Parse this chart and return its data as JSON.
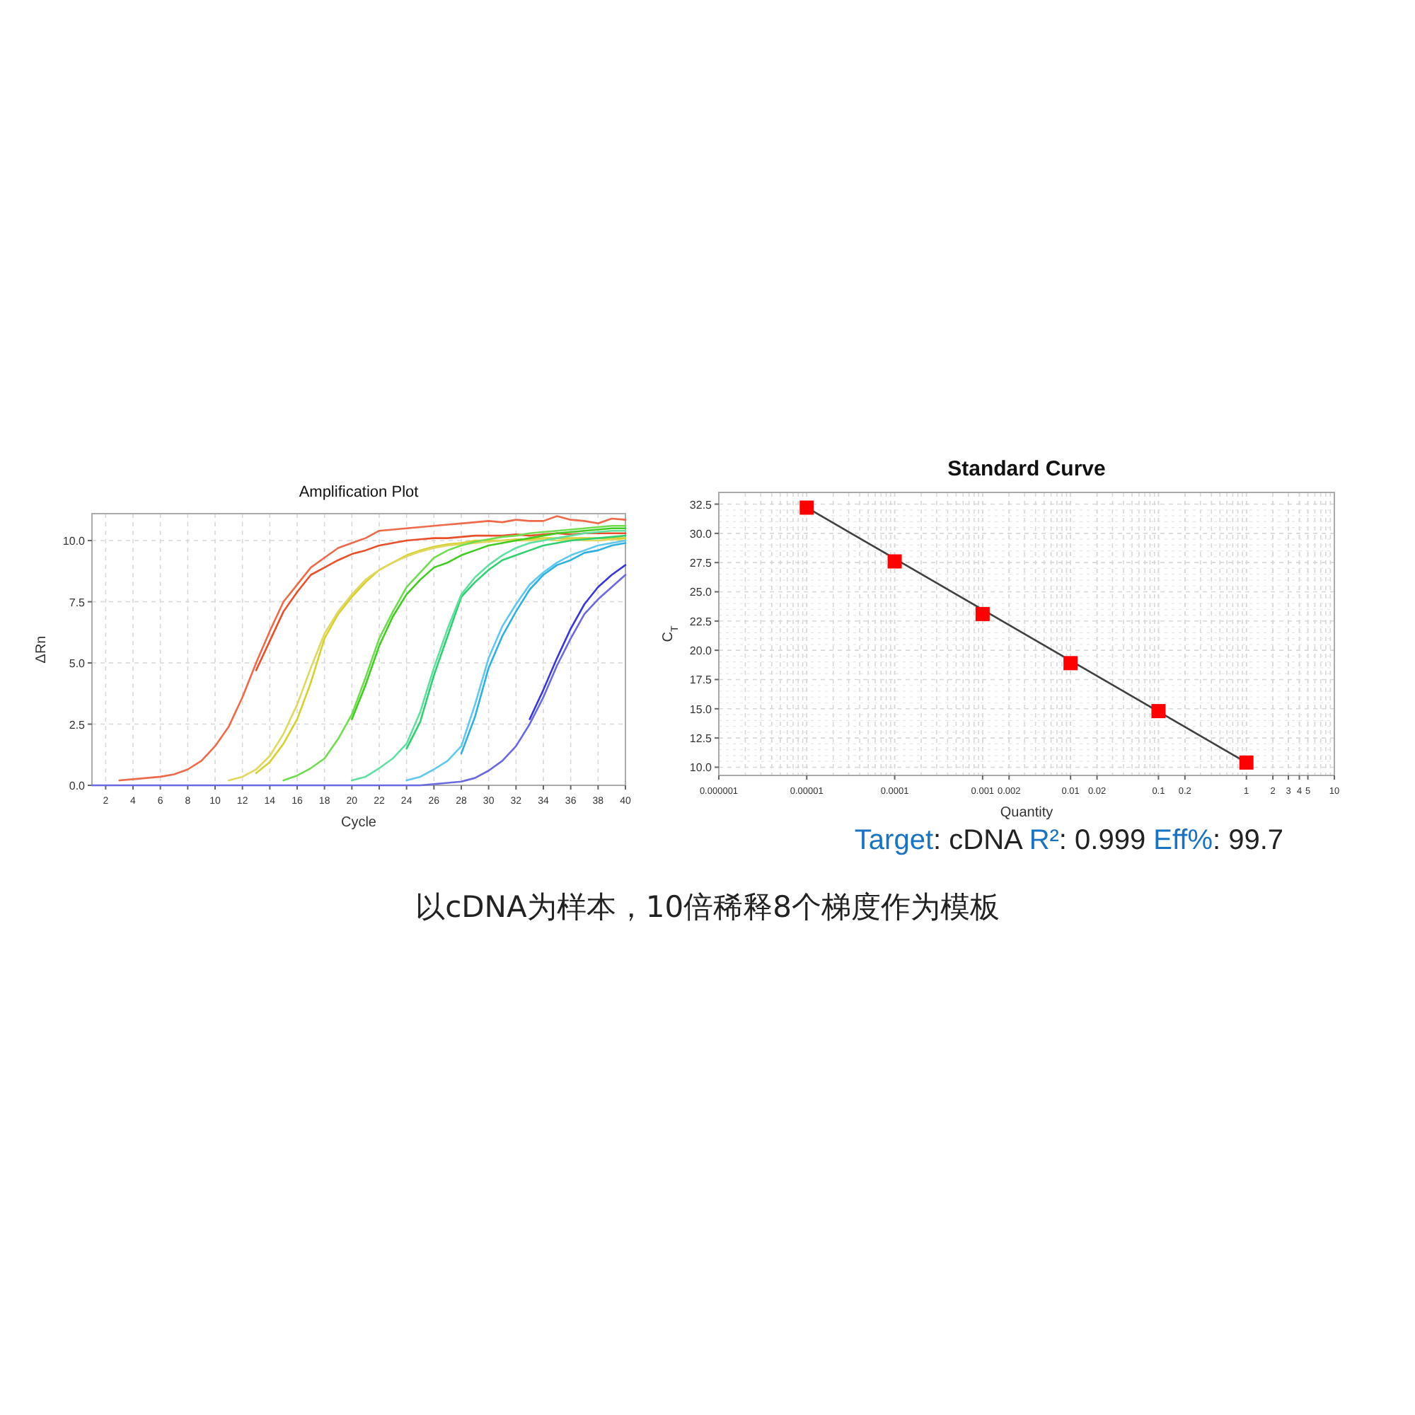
{
  "chart_data": [
    {
      "type": "line",
      "title": "Amplification Plot",
      "xlabel": "Cycle",
      "ylabel": "ΔRn",
      "grid": true,
      "marker": "none",
      "x": [
        1,
        2,
        3,
        4,
        5,
        6,
        7,
        8,
        9,
        10,
        11,
        12,
        13,
        14,
        15,
        16,
        17,
        18,
        19,
        20,
        21,
        22,
        23,
        24,
        25,
        26,
        27,
        28,
        29,
        30,
        31,
        32,
        33,
        34,
        35,
        36,
        37,
        38,
        39,
        40
      ],
      "xlim": [
        1,
        40
      ],
      "xticks": [
        2,
        4,
        6,
        8,
        10,
        12,
        14,
        16,
        18,
        20,
        22,
        24,
        26,
        28,
        30,
        32,
        34,
        36,
        38,
        40
      ],
      "ylim": [
        0,
        11.1
      ],
      "yticks": [
        {
          "value": 0,
          "label": "0.0"
        },
        {
          "value": 2.5,
          "label": "2.5"
        },
        {
          "value": 5,
          "label": "5.0"
        },
        {
          "value": 7.5,
          "label": "7.5"
        },
        {
          "value": 10,
          "label": "10.0"
        }
      ],
      "series": [
        {
          "color": "#e8502a",
          "values": [
            null,
            null,
            null,
            null,
            null,
            null,
            null,
            null,
            null,
            null,
            null,
            null,
            4.7,
            5.9,
            7.1,
            7.9,
            8.6,
            8.9,
            9.2,
            9.45,
            9.6,
            9.8,
            9.9,
            10.0,
            10.05,
            10.1,
            10.1,
            10.15,
            10.2,
            10.2,
            10.2,
            10.25,
            10.2,
            10.25,
            10.3,
            10.25,
            10.3,
            10.3,
            10.3,
            10.3
          ]
        },
        {
          "color": "#ee6a4a",
          "values": [
            null,
            null,
            0.2,
            0.25,
            0.3,
            0.35,
            0.45,
            0.65,
            1.0,
            1.6,
            2.4,
            3.6,
            5.0,
            6.3,
            7.5,
            8.2,
            8.9,
            9.3,
            9.7,
            9.9,
            10.1,
            10.4,
            10.45,
            10.5,
            10.55,
            10.6,
            10.65,
            10.7,
            10.75,
            10.8,
            10.75,
            10.85,
            10.8,
            10.8,
            11.0,
            10.85,
            10.8,
            10.7,
            10.9,
            10.85
          ]
        },
        {
          "color": "#d6d030",
          "values": [
            null,
            null,
            null,
            null,
            null,
            null,
            null,
            null,
            null,
            null,
            null,
            null,
            0.5,
            0.95,
            1.7,
            2.7,
            4.2,
            6.0,
            7.0,
            7.7,
            8.3,
            8.8,
            9.1,
            9.4,
            9.6,
            9.75,
            9.85,
            9.9,
            10.0,
            10.0,
            10.0,
            10.05,
            10.05,
            10.1,
            10.1,
            10.1,
            10.1,
            10.1,
            10.1,
            10.1
          ]
        },
        {
          "color": "#e0d860",
          "values": [
            null,
            null,
            null,
            null,
            null,
            null,
            null,
            null,
            null,
            null,
            0.2,
            0.35,
            0.65,
            1.2,
            2.1,
            3.3,
            4.8,
            6.2,
            7.1,
            7.8,
            8.4,
            8.8,
            9.1,
            9.35,
            9.55,
            9.7,
            9.8,
            9.85,
            9.9,
            9.95,
            10.0,
            10.0,
            10.0,
            10.05,
            10.0,
            10.05,
            10.0,
            10.0,
            10.05,
            10.0
          ]
        },
        {
          "color": "#40cc20",
          "values": [
            null,
            null,
            null,
            null,
            null,
            null,
            null,
            null,
            null,
            null,
            null,
            null,
            null,
            null,
            null,
            null,
            null,
            null,
            null,
            2.7,
            4.1,
            5.7,
            6.9,
            7.8,
            8.4,
            8.9,
            9.1,
            9.4,
            9.6,
            9.8,
            9.9,
            10.0,
            10.1,
            10.2,
            10.3,
            10.35,
            10.4,
            10.45,
            10.5,
            10.5
          ]
        },
        {
          "color": "#70dc50",
          "values": [
            null,
            null,
            null,
            null,
            null,
            null,
            null,
            null,
            null,
            null,
            null,
            null,
            null,
            null,
            0.2,
            0.4,
            0.7,
            1.1,
            1.9,
            2.9,
            4.4,
            6.0,
            7.1,
            8.1,
            8.7,
            9.3,
            9.6,
            9.8,
            9.95,
            10.05,
            10.15,
            10.2,
            10.3,
            10.35,
            10.4,
            10.45,
            10.5,
            10.55,
            10.6,
            10.6
          ]
        },
        {
          "color": "#30d070",
          "values": [
            null,
            null,
            null,
            null,
            null,
            null,
            null,
            null,
            null,
            null,
            null,
            null,
            null,
            null,
            null,
            null,
            null,
            null,
            null,
            null,
            null,
            null,
            null,
            1.5,
            2.6,
            4.5,
            6.1,
            7.7,
            8.3,
            8.8,
            9.2,
            9.4,
            9.6,
            9.8,
            9.9,
            10.0,
            10.05,
            10.1,
            10.15,
            10.2
          ]
        },
        {
          "color": "#60e0a0",
          "values": [
            null,
            null,
            null,
            null,
            null,
            null,
            null,
            null,
            null,
            null,
            null,
            null,
            null,
            null,
            null,
            null,
            null,
            null,
            null,
            0.2,
            0.35,
            0.7,
            1.1,
            1.7,
            3.0,
            4.8,
            6.4,
            7.8,
            8.5,
            9.0,
            9.4,
            9.7,
            9.9,
            10.0,
            10.1,
            10.2,
            10.3,
            10.35,
            10.4,
            10.4
          ]
        },
        {
          "color": "#30b0e0",
          "values": [
            null,
            null,
            null,
            null,
            null,
            null,
            null,
            null,
            null,
            null,
            null,
            null,
            null,
            null,
            null,
            null,
            null,
            null,
            null,
            null,
            null,
            null,
            null,
            null,
            null,
            null,
            null,
            1.3,
            2.8,
            4.8,
            6.1,
            7.1,
            8.0,
            8.6,
            9.0,
            9.2,
            9.5,
            9.6,
            9.8,
            9.9
          ]
        },
        {
          "color": "#60c8f0",
          "values": [
            null,
            null,
            null,
            null,
            null,
            null,
            null,
            null,
            null,
            null,
            null,
            null,
            null,
            null,
            null,
            null,
            null,
            null,
            null,
            null,
            null,
            null,
            null,
            0.2,
            0.35,
            0.65,
            1.0,
            1.6,
            3.3,
            5.2,
            6.5,
            7.4,
            8.2,
            8.7,
            9.1,
            9.4,
            9.6,
            9.8,
            9.9,
            10.0
          ]
        },
        {
          "color": "#3838d8",
          "values": [
            null,
            null,
            null,
            null,
            null,
            null,
            null,
            null,
            null,
            null,
            null,
            null,
            null,
            null,
            null,
            null,
            null,
            null,
            null,
            null,
            null,
            null,
            null,
            null,
            null,
            null,
            null,
            null,
            null,
            null,
            null,
            null,
            2.7,
            3.9,
            5.2,
            6.4,
            7.4,
            8.1,
            8.6,
            9.0
          ]
        },
        {
          "color": "#6a6ae0",
          "values": [
            0,
            0,
            0,
            0,
            0,
            0,
            0,
            0,
            0,
            0,
            0,
            0,
            0,
            0,
            0,
            0,
            0,
            0,
            0,
            0,
            0,
            0,
            0,
            0,
            0,
            0.05,
            0.1,
            0.15,
            0.3,
            0.6,
            1.0,
            1.6,
            2.5,
            3.6,
            4.9,
            6.0,
            7.0,
            7.6,
            8.1,
            8.6
          ]
        }
      ]
    },
    {
      "type": "scatter",
      "title": "Standard Curve",
      "xlabel": "Quantity",
      "ylabel": "C$_{T}$",
      "grid": true,
      "log": "x",
      "xlim": [
        1e-06,
        10
      ],
      "xticks": [
        {
          "value": 1e-06,
          "label": "0.000001"
        },
        {
          "value": 1e-05,
          "label": "0.00001"
        },
        0.0001,
        0.001,
        0.002,
        0.01,
        0.02,
        0.1,
        0.2,
        1,
        2,
        3,
        4,
        5,
        10
      ],
      "ylim": [
        9.3,
        33.5
      ],
      "yticks": [
        {
          "value": 10,
          "label": "10.0"
        },
        {
          "value": 12.5,
          "label": "12.5"
        },
        {
          "value": 15,
          "label": "15.0"
        },
        {
          "value": 17.5,
          "label": "17.5"
        },
        {
          "value": 20,
          "label": "20.0"
        },
        {
          "value": 22.5,
          "label": "22.5"
        },
        {
          "value": 25,
          "label": "25.0"
        },
        {
          "value": 27.5,
          "label": "27.5"
        },
        {
          "value": 30,
          "label": "30.0"
        },
        {
          "value": 32.5,
          "label": "32.5"
        }
      ],
      "series": [
        {
          "type": "line",
          "color": "#404040",
          "marker": "none",
          "x": [
            1e-05,
            1
          ],
          "values": [
            32.2,
            10.4
          ]
        },
        {
          "type": "scatter",
          "color": "#ff0000",
          "marker": "square",
          "x": [
            1e-05,
            0.0001,
            0.001,
            0.01,
            0.1,
            1
          ],
          "values": [
            32.2,
            27.6,
            23.1,
            18.9,
            14.8,
            10.4
          ]
        }
      ],
      "annotations": [
        "Target: cDNA  R²: 0.999 Eff%: 99.7"
      ]
    },
    {
      "type": "other",
      "annotations": [
        "以cDNA为样本，10倍稀释8个梯度作为模板"
      ]
    }
  ]
}
